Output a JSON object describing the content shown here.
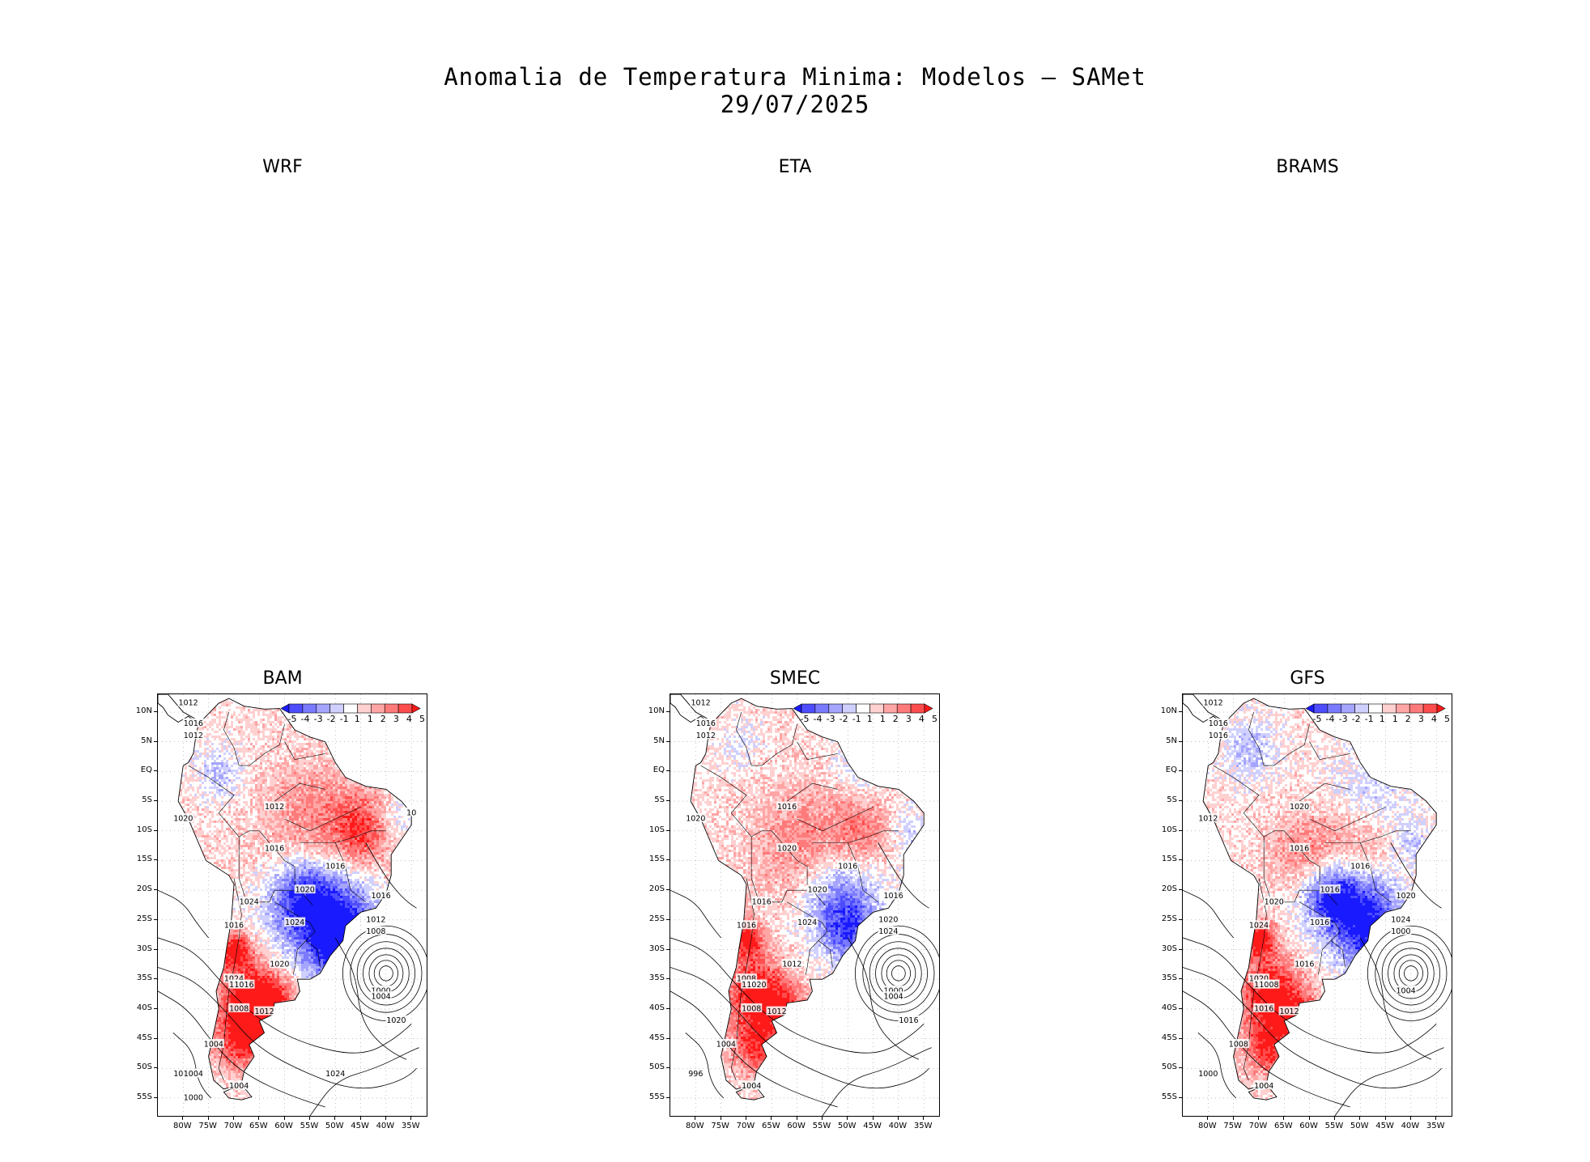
{
  "figure": {
    "title_line1": "Anomalia de Temperatura Minima: Modelos — SAMet",
    "title_line2": "29/07/2025"
  },
  "panels": [
    {
      "name": "WRF",
      "has_map": false
    },
    {
      "name": "ETA",
      "has_map": false
    },
    {
      "name": "BRAMS",
      "has_map": false
    },
    {
      "name": "BAM",
      "has_map": true,
      "isobar_labels": [
        "1012",
        "1016",
        "1012",
        "1020",
        "1012",
        "1016",
        "1016",
        "1020",
        "1024",
        "1016",
        "1024",
        "1020",
        "1024",
        "1020",
        "1016",
        "1008",
        "1012",
        "1004",
        "1000",
        "1004",
        "1016",
        "1012",
        "1008",
        "1000",
        "1004",
        "1020",
        "1024",
        "1000",
        "1004",
        "10"
      ]
    },
    {
      "name": "SMEC",
      "has_map": true,
      "isobar_labels": [
        "1012",
        "1016",
        "1012",
        "1020",
        "1016",
        "1020",
        "1016",
        "1020",
        "1016",
        "1016",
        "1024",
        "1012",
        "1008",
        "1020",
        "1020",
        "1008",
        "1012",
        "1004",
        "996",
        "1004",
        "1016",
        "1020",
        "1024",
        "1000",
        "1004",
        "1016"
      ]
    },
    {
      "name": "GFS",
      "has_map": true,
      "isobar_labels": [
        "1012",
        "1016",
        "1016",
        "1012",
        "1020",
        "1016",
        "1016",
        "1016",
        "1020",
        "1024",
        "1016",
        "1016",
        "1020",
        "1012",
        "1008",
        "1016",
        "1012",
        "1008",
        "1000",
        "1004",
        "1020",
        "1024",
        "1000",
        "1004"
      ]
    }
  ],
  "colorbar": {
    "labels": [
      "-5",
      "-4",
      "-3",
      "-2",
      "-1",
      "1",
      "1",
      "2",
      "3",
      "4",
      "5"
    ],
    "colors": [
      "#1a1aff",
      "#4d4dff",
      "#7a7aff",
      "#a5a5ff",
      "#d0d0ff",
      "#ffffff",
      "#ffd0d0",
      "#ffa5a5",
      "#ff7a7a",
      "#ff4d4d",
      "#ff1a1a"
    ]
  },
  "axes": {
    "lat_labels": [
      "10N",
      "5N",
      "EQ",
      "5S",
      "10S",
      "15S",
      "20S",
      "25S",
      "30S",
      "35S",
      "40S",
      "45S",
      "50S",
      "55S"
    ],
    "lon_labels": [
      "80W",
      "75W",
      "70W",
      "65W",
      "60W",
      "55W",
      "50W",
      "45W",
      "40W",
      "35W"
    ]
  }
}
